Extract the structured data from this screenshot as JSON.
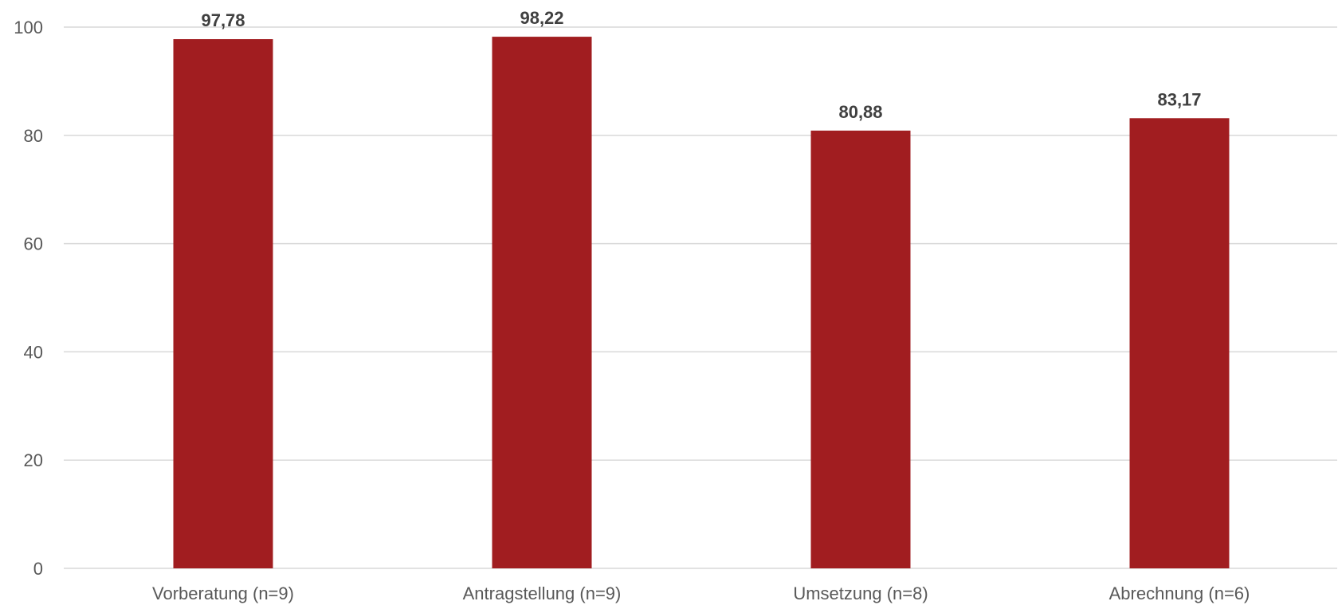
{
  "chart_data": {
    "type": "bar",
    "categories": [
      "Vorberatung (n=9)",
      "Antragstellung (n=9)",
      "Umsetzung (n=8)",
      "Abrechnung (n=6)"
    ],
    "values": [
      97.78,
      98.22,
      80.88,
      83.17
    ],
    "data_labels": [
      "97,78",
      "98,22",
      "80,88",
      "83,17"
    ],
    "yticks": [
      0,
      20,
      40,
      60,
      80,
      100
    ],
    "ylim": [
      0,
      100
    ],
    "grid": true,
    "bar_color": "#a11d20"
  }
}
